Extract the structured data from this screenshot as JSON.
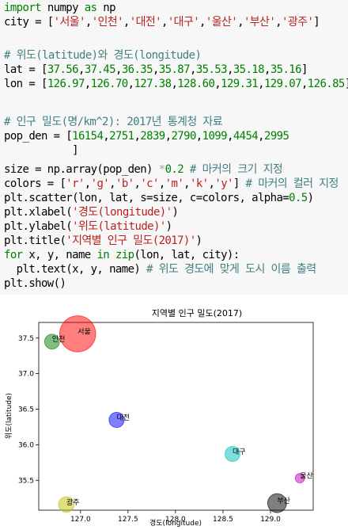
{
  "code": {
    "lines": [
      [
        {
          "t": "import",
          "c": "kw"
        },
        {
          "t": " numpy "
        },
        {
          "t": "as",
          "c": "kw"
        },
        {
          "t": " np"
        }
      ],
      [
        {
          "t": "city = ["
        },
        {
          "t": "'서울'",
          "c": "str"
        },
        {
          "t": ","
        },
        {
          "t": "'인천'",
          "c": "str"
        },
        {
          "t": ","
        },
        {
          "t": "'대전'",
          "c": "str"
        },
        {
          "t": ","
        },
        {
          "t": "'대구'",
          "c": "str"
        },
        {
          "t": ","
        },
        {
          "t": "'울산'",
          "c": "str"
        },
        {
          "t": ","
        },
        {
          "t": "'부산'",
          "c": "str"
        },
        {
          "t": ","
        },
        {
          "t": "'광주'",
          "c": "str"
        },
        {
          "t": "]"
        }
      ],
      [],
      [
        {
          "t": "# 위도(latitude)와 경도(longitude)",
          "c": "cm"
        }
      ],
      [
        {
          "t": "lat = ["
        },
        {
          "t": "37.56",
          "c": "num"
        },
        {
          "t": ","
        },
        {
          "t": "37.45",
          "c": "num"
        },
        {
          "t": ","
        },
        {
          "t": "36.35",
          "c": "num"
        },
        {
          "t": ","
        },
        {
          "t": "35.87",
          "c": "num"
        },
        {
          "t": ","
        },
        {
          "t": "35.53",
          "c": "num"
        },
        {
          "t": ","
        },
        {
          "t": "35.18",
          "c": "num"
        },
        {
          "t": ","
        },
        {
          "t": "35.16",
          "c": "num"
        },
        {
          "t": "]"
        }
      ],
      [
        {
          "t": "lon = ["
        },
        {
          "t": "126.97",
          "c": "num"
        },
        {
          "t": ","
        },
        {
          "t": "126.70",
          "c": "num"
        },
        {
          "t": ","
        },
        {
          "t": "127.38",
          "c": "num"
        },
        {
          "t": ","
        },
        {
          "t": "128.60",
          "c": "num"
        },
        {
          "t": ","
        },
        {
          "t": "129.31",
          "c": "num"
        },
        {
          "t": ","
        },
        {
          "t": "129.07",
          "c": "num"
        },
        {
          "t": ","
        },
        {
          "t": "126.85",
          "c": "num"
        },
        {
          "t": "]"
        }
      ],
      [],
      [
        {
          "t": "# 인구 밀도(명/km^2): 2017년 통계청 자료",
          "c": "cm"
        }
      ],
      [
        {
          "t": "pop_den = ["
        },
        {
          "t": "16154",
          "c": "num"
        },
        {
          "t": ","
        },
        {
          "t": "2751",
          "c": "num"
        },
        {
          "t": ","
        },
        {
          "t": "2839",
          "c": "num"
        },
        {
          "t": ","
        },
        {
          "t": "2790",
          "c": "num"
        },
        {
          "t": ","
        },
        {
          "t": "1099",
          "c": "num"
        },
        {
          "t": ","
        },
        {
          "t": "4454",
          "c": "num"
        },
        {
          "t": ","
        },
        {
          "t": "2995",
          "c": "num"
        }
      ],
      [
        {
          "t": "           ]"
        }
      ],
      [
        {
          "t": "size = np.array(pop_den) "
        },
        {
          "t": "*",
          "c": "op"
        },
        {
          "t": "0.2",
          "c": "num"
        },
        {
          "t": " "
        },
        {
          "t": "# 마커의 크기 지정",
          "c": "cm"
        }
      ],
      [
        {
          "t": "colors = ["
        },
        {
          "t": "'r'",
          "c": "str"
        },
        {
          "t": ","
        },
        {
          "t": "'g'",
          "c": "str"
        },
        {
          "t": ","
        },
        {
          "t": "'b'",
          "c": "str"
        },
        {
          "t": ","
        },
        {
          "t": "'c'",
          "c": "str"
        },
        {
          "t": ","
        },
        {
          "t": "'m'",
          "c": "str"
        },
        {
          "t": ","
        },
        {
          "t": "'k'",
          "c": "str"
        },
        {
          "t": ","
        },
        {
          "t": "'y'",
          "c": "str"
        },
        {
          "t": "] "
        },
        {
          "t": "# 마커의 컬러 지정",
          "c": "cm"
        }
      ],
      [
        {
          "t": "plt.scatter(lon, lat, s=size, c=colors, alpha="
        },
        {
          "t": "0.5",
          "c": "num"
        },
        {
          "t": ")"
        }
      ],
      [
        {
          "t": "plt.xlabel("
        },
        {
          "t": "'경도(longitude)'",
          "c": "str"
        },
        {
          "t": ")"
        }
      ],
      [
        {
          "t": "plt.ylabel("
        },
        {
          "t": "'위도(latitude)'",
          "c": "str"
        },
        {
          "t": ")"
        }
      ],
      [
        {
          "t": "plt.title("
        },
        {
          "t": "'지역별 인구 밀도(2017)'",
          "c": "str"
        },
        {
          "t": ")"
        }
      ],
      [
        {
          "t": "for",
          "c": "kw"
        },
        {
          "t": " x, y, name "
        },
        {
          "t": "in",
          "c": "kw"
        },
        {
          "t": " "
        },
        {
          "t": "zip",
          "c": "kw"
        },
        {
          "t": "(lon, lat, city):"
        }
      ],
      [
        {
          "t": "  plt.text(x, y, name) "
        },
        {
          "t": "# 위도 경도에 맞게 도시 이름 출력",
          "c": "cm"
        }
      ],
      [
        {
          "t": "plt.show()"
        }
      ]
    ]
  },
  "chart_data": {
    "type": "scatter",
    "title": "지역별 인구 밀도(2017)",
    "xlabel": "경도(longitude)",
    "ylabel": "위도(latitude)",
    "xlim": [
      126.56,
      129.45
    ],
    "ylim": [
      35.08,
      37.72
    ],
    "xticks": [
      "127.0",
      "127.5",
      "128.0",
      "128.5",
      "129.0"
    ],
    "yticks": [
      "35.5",
      "36.0",
      "36.5",
      "37.0",
      "37.5"
    ],
    "grid": false,
    "alpha": 0.5,
    "points": [
      {
        "name": "서울",
        "x": 126.97,
        "y": 37.56,
        "size": 3230.8,
        "color": "#ff0000"
      },
      {
        "name": "인천",
        "x": 126.7,
        "y": 37.45,
        "size": 550.2,
        "color": "#008000"
      },
      {
        "name": "대전",
        "x": 127.38,
        "y": 36.35,
        "size": 567.8,
        "color": "#0000ff"
      },
      {
        "name": "대구",
        "x": 128.6,
        "y": 35.87,
        "size": 558.0,
        "color": "#00bfbf"
      },
      {
        "name": "울산",
        "x": 129.31,
        "y": 35.53,
        "size": 219.8,
        "color": "#bf00bf"
      },
      {
        "name": "부산",
        "x": 129.07,
        "y": 35.18,
        "size": 890.8,
        "color": "#000000"
      },
      {
        "name": "광주",
        "x": 126.85,
        "y": 35.16,
        "size": 599.0,
        "color": "#bfbf00"
      }
    ]
  }
}
